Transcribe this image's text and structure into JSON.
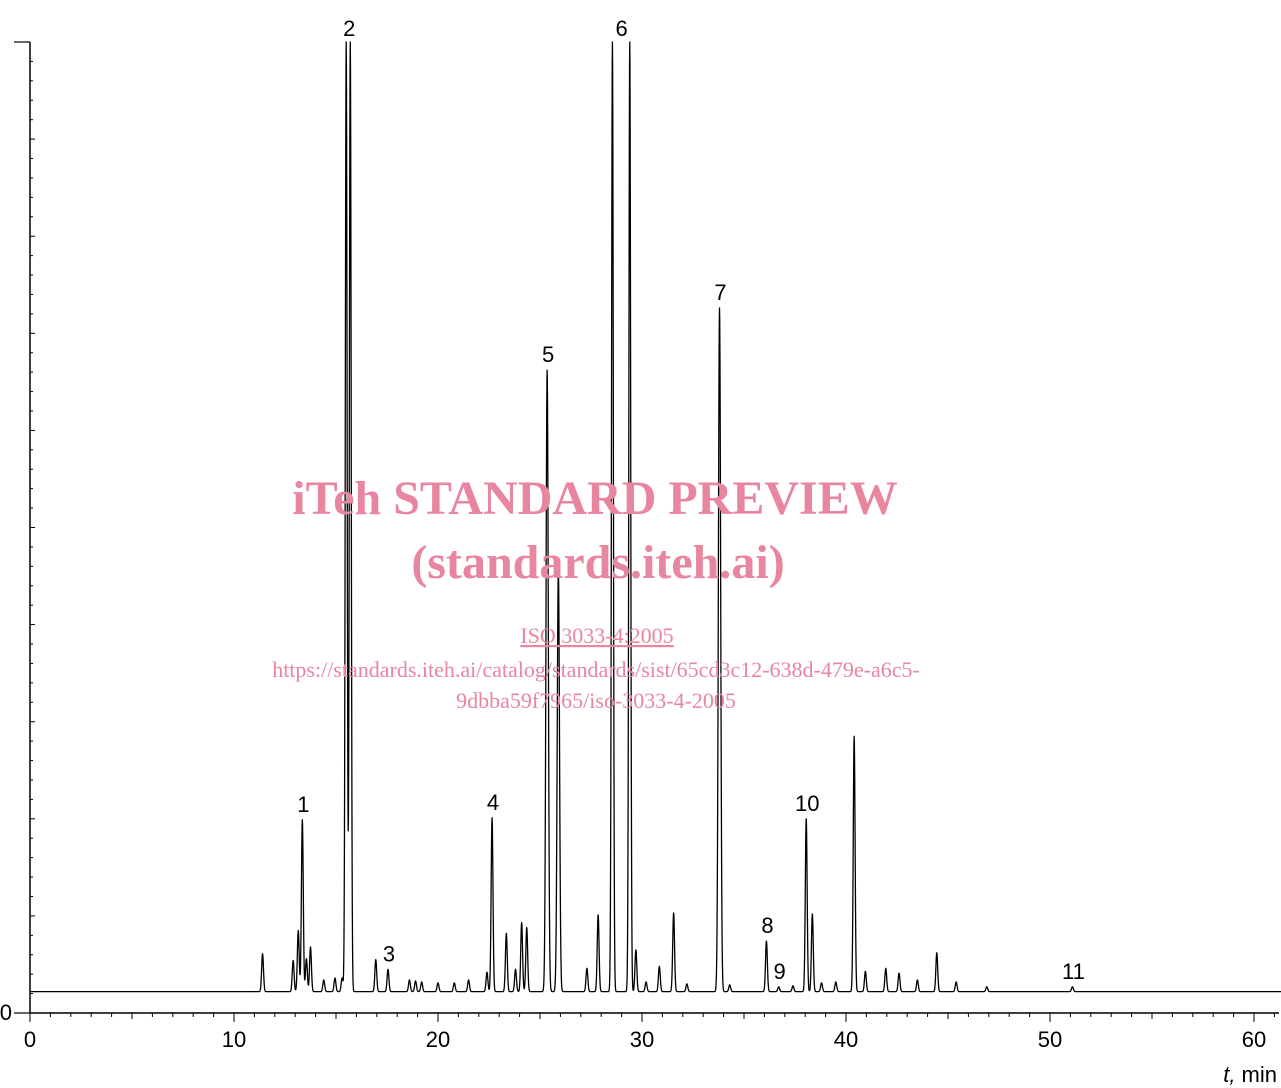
{
  "chart_data": {
    "type": "line",
    "xlabel_italic": "t,",
    "xlabel_unit": " min",
    "ylabel": "",
    "xlim": [
      0,
      61.5
    ],
    "ylim": [
      0,
      100
    ],
    "y_origin_label": "0",
    "x_tick_labels": [
      {
        "x": 0,
        "label": "0"
      },
      {
        "x": 10,
        "label": "10"
      },
      {
        "x": 20,
        "label": "20"
      },
      {
        "x": 30,
        "label": "30"
      },
      {
        "x": 40,
        "label": "40"
      },
      {
        "x": 50,
        "label": "50"
      },
      {
        "x": 60,
        "label": "60"
      }
    ],
    "baseline": 2.2,
    "peaks": [
      {
        "t": 11.4,
        "h": 6.1
      },
      {
        "t": 12.9,
        "h": 5.4
      },
      {
        "t": 13.15,
        "h": 8.5
      },
      {
        "t": 13.35,
        "h": 19.9
      },
      {
        "t": 13.55,
        "h": 5.6
      },
      {
        "t": 13.75,
        "h": 6.8
      },
      {
        "t": 14.4,
        "h": 3.4
      },
      {
        "t": 14.95,
        "h": 3.6
      },
      {
        "t": 15.3,
        "h": 3.6
      },
      {
        "t": 15.5,
        "h": 100
      },
      {
        "t": 15.7,
        "h": 100
      },
      {
        "t": 16.95,
        "h": 5.5
      },
      {
        "t": 17.55,
        "h": 4.5
      },
      {
        "t": 18.6,
        "h": 3.4
      },
      {
        "t": 18.9,
        "h": 3.3
      },
      {
        "t": 19.2,
        "h": 3.2
      },
      {
        "t": 20.0,
        "h": 3.1
      },
      {
        "t": 20.8,
        "h": 3.1
      },
      {
        "t": 21.5,
        "h": 3.4
      },
      {
        "t": 22.4,
        "h": 4.2
      },
      {
        "t": 22.65,
        "h": 20.1
      },
      {
        "t": 23.35,
        "h": 8.2
      },
      {
        "t": 23.8,
        "h": 4.5
      },
      {
        "t": 24.1,
        "h": 9.3
      },
      {
        "t": 24.35,
        "h": 8.8
      },
      {
        "t": 25.35,
        "h": 66.2
      },
      {
        "t": 25.9,
        "h": 45.6
      },
      {
        "t": 27.3,
        "h": 4.6
      },
      {
        "t": 27.85,
        "h": 10.1
      },
      {
        "t": 28.55,
        "h": 100
      },
      {
        "t": 29.4,
        "h": 100
      },
      {
        "t": 29.7,
        "h": 6.5
      },
      {
        "t": 30.2,
        "h": 3.2
      },
      {
        "t": 30.85,
        "h": 4.8
      },
      {
        "t": 31.55,
        "h": 10.3
      },
      {
        "t": 32.2,
        "h": 3.0
      },
      {
        "t": 33.8,
        "h": 72.6
      },
      {
        "t": 34.3,
        "h": 2.9
      },
      {
        "t": 36.1,
        "h": 7.4
      },
      {
        "t": 36.7,
        "h": 2.7
      },
      {
        "t": 37.4,
        "h": 2.8
      },
      {
        "t": 38.05,
        "h": 20.0
      },
      {
        "t": 38.35,
        "h": 10.2
      },
      {
        "t": 38.8,
        "h": 3.1
      },
      {
        "t": 39.5,
        "h": 3.2
      },
      {
        "t": 40.4,
        "h": 28.5
      },
      {
        "t": 40.95,
        "h": 4.3
      },
      {
        "t": 41.95,
        "h": 4.6
      },
      {
        "t": 42.6,
        "h": 4.1
      },
      {
        "t": 43.5,
        "h": 3.4
      },
      {
        "t": 44.45,
        "h": 6.2
      },
      {
        "t": 45.4,
        "h": 3.2
      },
      {
        "t": 46.9,
        "h": 2.7
      },
      {
        "t": 51.1,
        "h": 2.7
      }
    ],
    "annotations": [
      {
        "label": "1",
        "t": 13.35,
        "h": 19.9
      },
      {
        "label": "2",
        "t": 15.6,
        "h": 100
      },
      {
        "label": "3",
        "t": 17.55,
        "h": 4.5
      },
      {
        "label": "4",
        "t": 22.65,
        "h": 20.1
      },
      {
        "label": "5",
        "t": 25.35,
        "h": 66.2
      },
      {
        "label": "6",
        "t": 28.95,
        "h": 100
      },
      {
        "label": "7",
        "t": 33.8,
        "h": 72.6
      },
      {
        "label": "8",
        "t": 36.1,
        "h": 7.4
      },
      {
        "label": "9",
        "t": 36.7,
        "h": 2.7
      },
      {
        "label": "10",
        "t": 38.05,
        "h": 20.0
      },
      {
        "label": "11",
        "t": 51.1,
        "h": 2.7
      }
    ]
  },
  "watermark": {
    "line1": "iTeh STANDARD PREVIEW",
    "line2": "(standards.iteh.ai)",
    "line3": "ISO 3033-4:2005",
    "line4": "https://standards.iteh.ai/catalog/standards/sist/65cd3c12-638d-479e-a6c5-",
    "line5": "9dbba59f7965/iso-3033-4-2005",
    "color": "#e8859f"
  }
}
